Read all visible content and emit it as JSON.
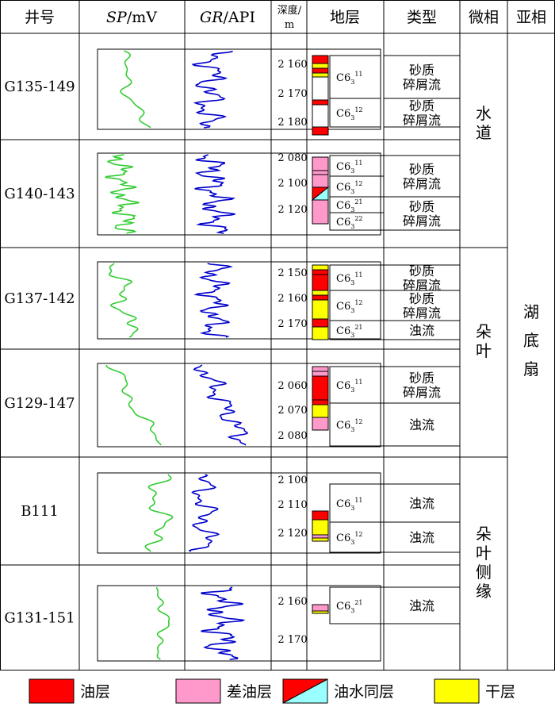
{
  "headers": {
    "well": "井号",
    "sp_var": "SP",
    "sp_unit": "/mV",
    "gr_var": "GR",
    "gr_unit": "/API",
    "depth_line1": "深度/",
    "depth_line2": "m",
    "strata": "地层",
    "type": "类型",
    "microfacies": "微相",
    "subfacies": "亚相"
  },
  "wells": [
    {
      "name": "G135-149",
      "depth_labels": [
        "2 160",
        "2 170",
        "2 180"
      ],
      "units": [
        {
          "base": "C6",
          "sub": "3",
          "sup": "11"
        },
        {
          "base": "C6",
          "sub": "3",
          "sup": "12"
        }
      ],
      "types": [
        [
          "砂质",
          "碎屑流"
        ],
        [
          "砂质",
          "碎屑流"
        ]
      ],
      "lithology": [
        "oil",
        "dry",
        "oil",
        "dry",
        "white",
        "oil",
        "white",
        "oil"
      ]
    },
    {
      "name": "G140-143",
      "depth_labels": [
        "2 080",
        "2 100",
        "2 120"
      ],
      "units": [
        {
          "base": "C6",
          "sub": "3",
          "sup": "11"
        },
        {
          "base": "C6",
          "sub": "3",
          "sup": "12"
        },
        {
          "base": "C6",
          "sub": "3",
          "sup": "21"
        },
        {
          "base": "C6",
          "sub": "3",
          "sup": "22"
        }
      ],
      "types": [
        [
          "砂质",
          "碎屑流"
        ],
        [
          "砂质",
          "碎屑流"
        ]
      ],
      "lithology": [
        "poor",
        "poor",
        "poor",
        "oil_water",
        "poor"
      ]
    },
    {
      "name": "G137-142",
      "depth_labels": [
        "2 150",
        "2 160",
        "2 170"
      ],
      "units": [
        {
          "base": "C6",
          "sub": "3",
          "sup": "11"
        },
        {
          "base": "C6",
          "sub": "3",
          "sup": "12"
        },
        {
          "base": "C6",
          "sub": "3",
          "sup": "21"
        }
      ],
      "types": [
        [
          "砂质",
          "碎屑流"
        ],
        [
          "砂质",
          "碎屑流"
        ],
        [
          "浊流"
        ]
      ],
      "lithology": [
        "dry",
        "oil",
        "oil",
        "dry",
        "oil",
        "dry",
        "oil",
        "dry"
      ]
    },
    {
      "name": "G129-147",
      "depth_labels": [
        "2 060",
        "2 070",
        "2 080"
      ],
      "units": [
        {
          "base": "C6",
          "sub": "3",
          "sup": "11"
        },
        {
          "base": "C6",
          "sub": "3",
          "sup": "12"
        }
      ],
      "types": [
        [
          "砂质",
          "碎屑流"
        ],
        [
          "浊流"
        ]
      ],
      "lithology": [
        "poor",
        "poor",
        "oil",
        "oil",
        "dry",
        "poor"
      ]
    },
    {
      "name": "B111",
      "depth_labels": [
        "2 100",
        "2 110",
        "2 120"
      ],
      "units": [
        {
          "base": "C6",
          "sub": "3",
          "sup": "11"
        },
        {
          "base": "C6",
          "sub": "3",
          "sup": "12"
        }
      ],
      "types": [
        [
          "浊流"
        ],
        [
          "浊流"
        ]
      ],
      "lithology": [
        "oil",
        "dry",
        "poor",
        "dry"
      ]
    },
    {
      "name": "G131-151",
      "depth_labels": [
        "2 160",
        "2 170"
      ],
      "units": [
        {
          "base": "C6",
          "sub": "3",
          "sup": "21"
        }
      ],
      "types": [
        [
          "浊流"
        ]
      ],
      "lithology": [
        "poor",
        "dry"
      ]
    }
  ],
  "microfacies": [
    {
      "label": "水道"
    },
    {
      "label": "朵叶"
    },
    {
      "label": "朵叶侧缘"
    }
  ],
  "subfacies": [
    {
      "label": "湖底扇"
    }
  ],
  "legend": [
    {
      "key": "oil",
      "label": "油层"
    },
    {
      "key": "poor",
      "label": "差油层"
    },
    {
      "key": "oil_water",
      "label": "油水同层"
    },
    {
      "key": "dry",
      "label": "干层"
    }
  ],
  "colors": {
    "oil": "#ff0000",
    "poor_oil": "#ff99cc",
    "water": "#99ffff",
    "dry": "#ffff00",
    "sp_curve": "#33cc33",
    "gr_curve": "#0000cc",
    "line": "#000000"
  }
}
